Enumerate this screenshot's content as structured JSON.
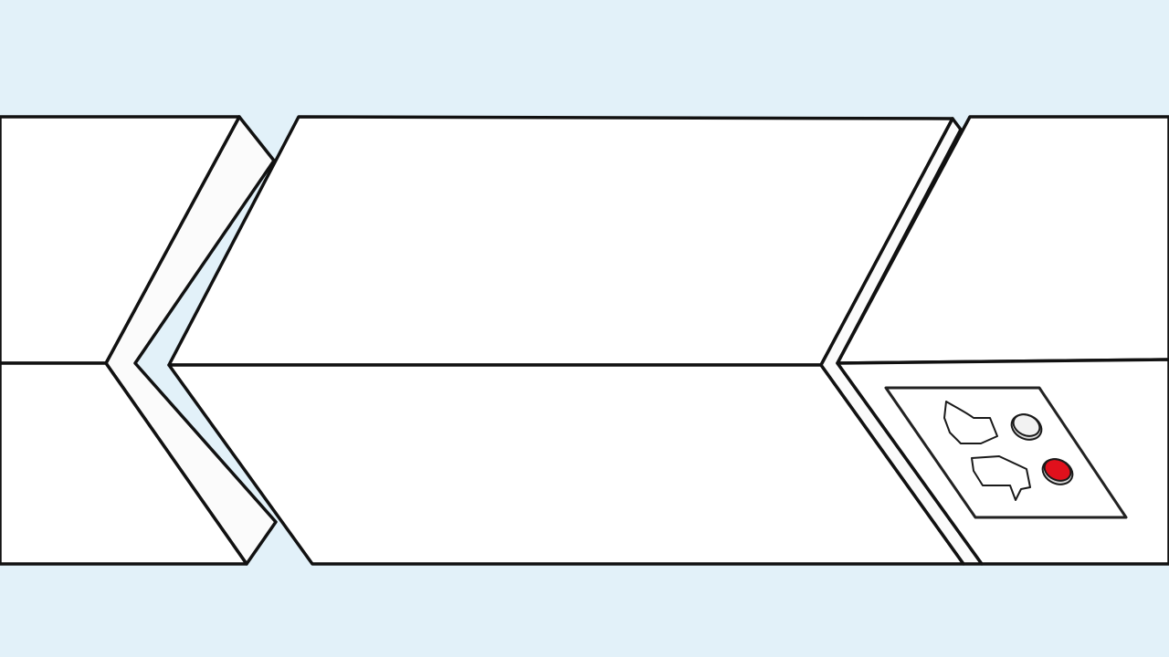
{
  "scene": {
    "background_color": "#e2f1f9",
    "block_fill": "#ffffff",
    "outline_color": "#111111"
  },
  "control_panel": {
    "icons": [
      "thumbs-up-icon",
      "thumbs-down-icon"
    ],
    "buttons": [
      {
        "name": "thumbs-up-button",
        "state": "inactive",
        "color": "#f2f2f2"
      },
      {
        "name": "thumbs-down-button",
        "state": "active",
        "color": "#e0101c"
      }
    ]
  }
}
